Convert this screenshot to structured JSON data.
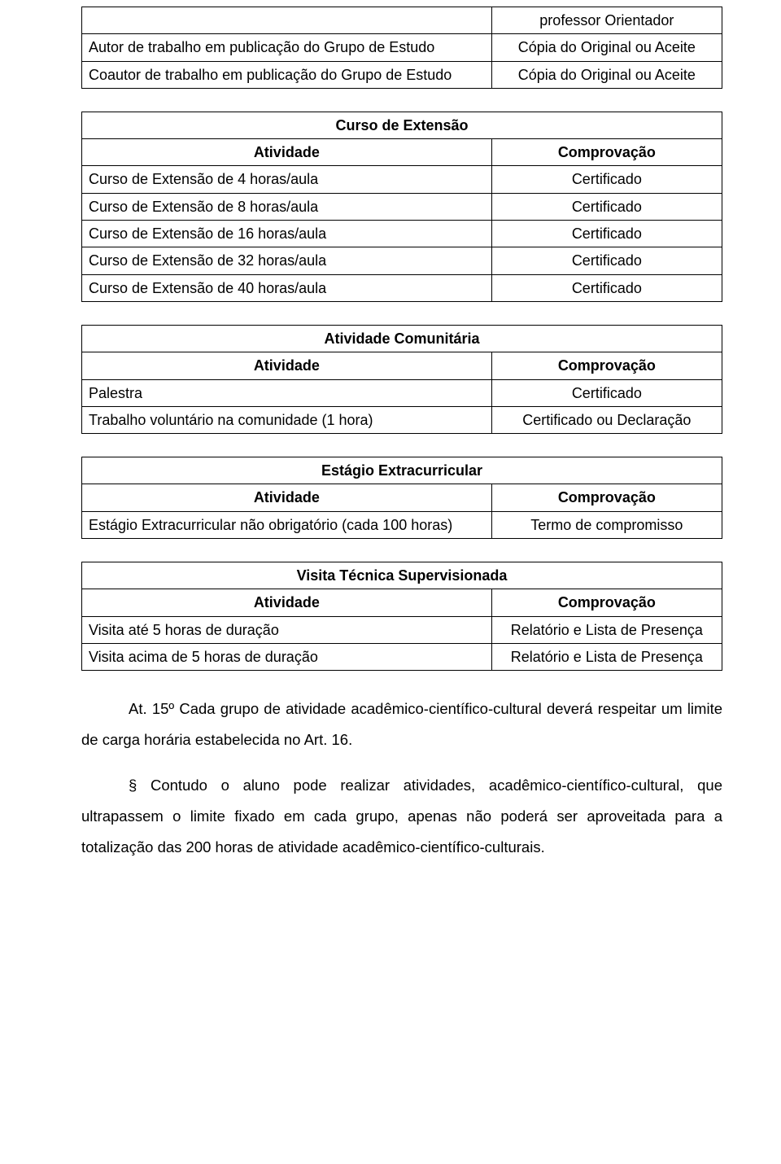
{
  "table1": {
    "rows": [
      {
        "left": "",
        "right": "professor Orientador"
      },
      {
        "left": "Autor de trabalho em publicação do Grupo de Estudo",
        "right": "Cópia do Original ou Aceite"
      },
      {
        "left": "Coautor de trabalho em publicação do Grupo de Estudo",
        "right": "Cópia do Original ou Aceite"
      }
    ]
  },
  "table2": {
    "title": "Curso de Extensão",
    "header_left": "Atividade",
    "header_right": "Comprovação",
    "rows": [
      {
        "left": "Curso de Extensão de 4 horas/aula",
        "right": "Certificado"
      },
      {
        "left": "Curso de Extensão de 8 horas/aula",
        "right": "Certificado"
      },
      {
        "left": "Curso de Extensão de 16 horas/aula",
        "right": "Certificado"
      },
      {
        "left": "Curso de Extensão de 32 horas/aula",
        "right": "Certificado"
      },
      {
        "left": "Curso de Extensão de 40 horas/aula",
        "right": "Certificado"
      }
    ]
  },
  "table3": {
    "title": "Atividade Comunitária",
    "header_left": "Atividade",
    "header_right": "Comprovação",
    "rows": [
      {
        "left": "Palestra",
        "right": "Certificado"
      },
      {
        "left": "Trabalho voluntário na comunidade (1 hora)",
        "right": "Certificado ou Declaração"
      }
    ]
  },
  "table4": {
    "title": "Estágio Extracurricular",
    "header_left": "Atividade",
    "header_right": "Comprovação",
    "rows": [
      {
        "left": "Estágio Extracurricular não obrigatório (cada 100 horas)",
        "right": "Termo de compromisso"
      }
    ]
  },
  "table5": {
    "title": "Visita Técnica Supervisionada",
    "header_left": "Atividade",
    "header_right": "Comprovação",
    "rows": [
      {
        "left": "Visita até 5 horas de duração",
        "right": "Relatório e Lista de Presença"
      },
      {
        "left": "Visita acima de 5 horas de duração",
        "right": "Relatório e Lista de Presença"
      }
    ]
  },
  "paragraph1": "At. 15º Cada grupo de atividade acadêmico-científico-cultural deverá respeitar um limite de carga horária estabelecida no Art. 16.",
  "paragraph2": "§ Contudo o aluno pode realizar atividades, acadêmico-científico-cultural, que ultrapassem o limite fixado em cada grupo, apenas não poderá ser aproveitada para a totalização das 200 horas de atividade acadêmico-científico-culturais."
}
